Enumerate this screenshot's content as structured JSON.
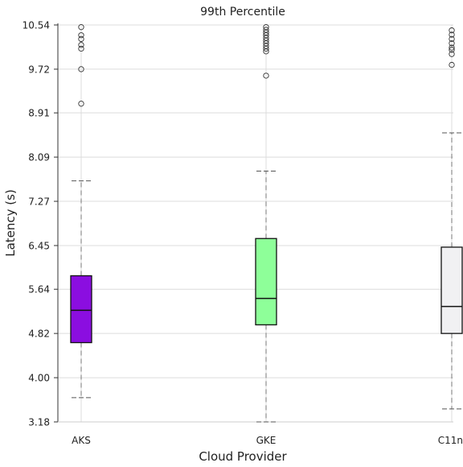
{
  "chart_data": {
    "type": "box",
    "title": "99th Percentile",
    "xlabel": "Cloud Provider",
    "ylabel": "Latency (s)",
    "ylim": [
      3.18,
      10.54
    ],
    "yticks": [
      "3.18",
      "4.00",
      "4.82",
      "5.64",
      "6.45",
      "7.27",
      "8.09",
      "8.91",
      "9.72",
      "10.54"
    ],
    "grid": true,
    "categories": [
      "AKS",
      "GKE",
      "C11n"
    ],
    "colors": [
      "#8b0ee0",
      "#8eff99",
      "#f1f1f3"
    ],
    "boxes": [
      {
        "name": "AKS",
        "whisker_low": 3.63,
        "q1": 4.65,
        "median": 5.25,
        "q3": 5.89,
        "whisker_high": 7.65,
        "outliers": [
          9.08,
          9.72,
          10.1,
          10.17,
          10.28,
          10.35,
          10.5
        ]
      },
      {
        "name": "GKE",
        "whisker_low": 3.18,
        "q1": 4.98,
        "median": 5.47,
        "q3": 6.58,
        "whisker_high": 7.83,
        "outliers": [
          9.6,
          10.05,
          10.1,
          10.15,
          10.2,
          10.25,
          10.3,
          10.35,
          10.4,
          10.45,
          10.5
        ]
      },
      {
        "name": "C11n",
        "whisker_low": 3.42,
        "q1": 4.82,
        "median": 5.32,
        "q3": 6.42,
        "whisker_high": 8.54,
        "outliers": [
          9.8,
          10.0,
          10.08,
          10.12,
          10.2,
          10.28,
          10.36,
          10.44
        ]
      }
    ]
  }
}
